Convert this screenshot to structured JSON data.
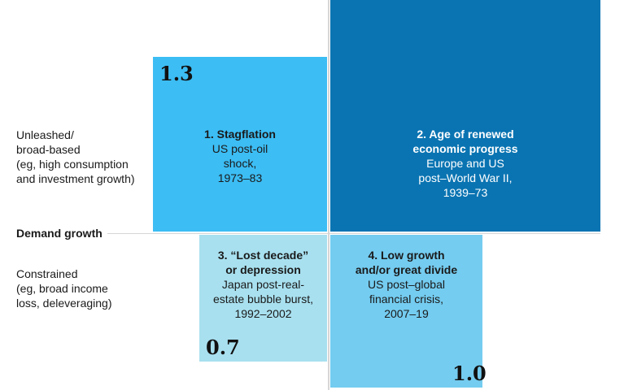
{
  "colors": {
    "stagflation": "#3cbdf4",
    "renewed_progress": "#0a74b2",
    "lost_decade": "#a8e0ef",
    "low_growth": "#74ccf0",
    "axis": "#d6d6d6"
  },
  "axis_title": "Demand growth",
  "rows": {
    "top": {
      "lines": [
        "Unleashed/",
        "broad-based",
        "(eg, high consumption",
        "and investment growth)"
      ]
    },
    "bottom": {
      "lines": [
        "Constrained",
        "(eg, broad income",
        "loss, deleveraging)"
      ]
    }
  },
  "scenarios": [
    {
      "heading": [
        "1. Stagflation"
      ],
      "body": [
        "US post-oil",
        "shock,",
        "1973–83"
      ],
      "value": "1.3"
    },
    {
      "heading": [
        "2. Age of renewed",
        "economic progress"
      ],
      "body": [
        "Europe and US",
        "post–World War II,",
        "1939–73"
      ],
      "value": ""
    },
    {
      "heading": [
        "3. “Lost decade”",
        "or depression"
      ],
      "body": [
        "Japan post-real-",
        "estate bubble burst,",
        "1992–2002"
      ],
      "value": "0.7"
    },
    {
      "heading": [
        "4. Low growth",
        "and/or great divide"
      ],
      "body": [
        "US post–global",
        "financial crisis,",
        "2007–19"
      ],
      "value": "1.0"
    }
  ]
}
